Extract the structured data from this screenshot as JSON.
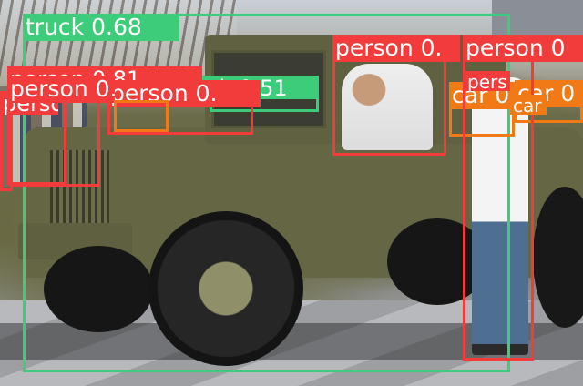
{
  "colors": {
    "person": "#f23b3b",
    "truck": "#3dcc7a",
    "car": "#f27a16"
  },
  "detections": [
    {
      "id": "truck-1",
      "class": "truck",
      "label": "truck 0.68"
    },
    {
      "id": "truck-2",
      "class": "truck",
      "label": "truck 0.51"
    },
    {
      "id": "person-1",
      "class": "person",
      "label": "person 0.81"
    },
    {
      "id": "person-2",
      "class": "person",
      "label": "person 0."
    },
    {
      "id": "person-3",
      "class": "person",
      "label": "person 0.76"
    },
    {
      "id": "person-4",
      "class": "person",
      "label": "person 0."
    },
    {
      "id": "person-5",
      "class": "person",
      "label": "person 0"
    },
    {
      "id": "person-6",
      "class": "person",
      "label": "person 0"
    },
    {
      "id": "person-7",
      "class": "person",
      "label": "pers"
    },
    {
      "id": "person-8",
      "class": "person",
      "label": "perso"
    },
    {
      "id": "car-1",
      "class": "car",
      "label": "car 0"
    },
    {
      "id": "car-2",
      "class": "car",
      "label": "car 0"
    },
    {
      "id": "car-3",
      "class": "car",
      "label": "car"
    }
  ]
}
